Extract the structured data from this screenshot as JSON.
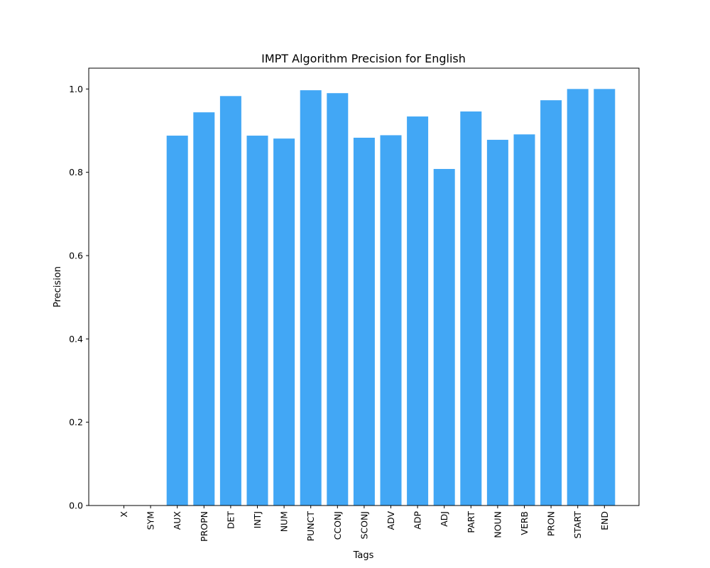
{
  "chart_data": {
    "type": "bar",
    "title": "IMPT Algorithm Precision for English",
    "xlabel": "Tags",
    "ylabel": "Precision",
    "categories": [
      "X",
      "SYM",
      "AUX",
      "PROPN",
      "DET",
      "INTJ",
      "NUM",
      "PUNCT",
      "CCONJ",
      "SCONJ",
      "ADV",
      "ADP",
      "ADJ",
      "PART",
      "NOUN",
      "VERB",
      "PRON",
      "START",
      "END"
    ],
    "values": [
      0.0,
      0.0,
      0.888,
      0.944,
      0.983,
      0.888,
      0.881,
      0.997,
      0.99,
      0.883,
      0.889,
      0.934,
      0.808,
      0.946,
      0.878,
      0.891,
      0.973,
      1.0,
      1.0
    ],
    "ylim": [
      0,
      1.05
    ],
    "yticks": [
      "0.0",
      "0.2",
      "0.4",
      "0.6",
      "0.8",
      "1.0"
    ],
    "bar_color": "#42a7f5",
    "grid": false,
    "legend": "none"
  }
}
